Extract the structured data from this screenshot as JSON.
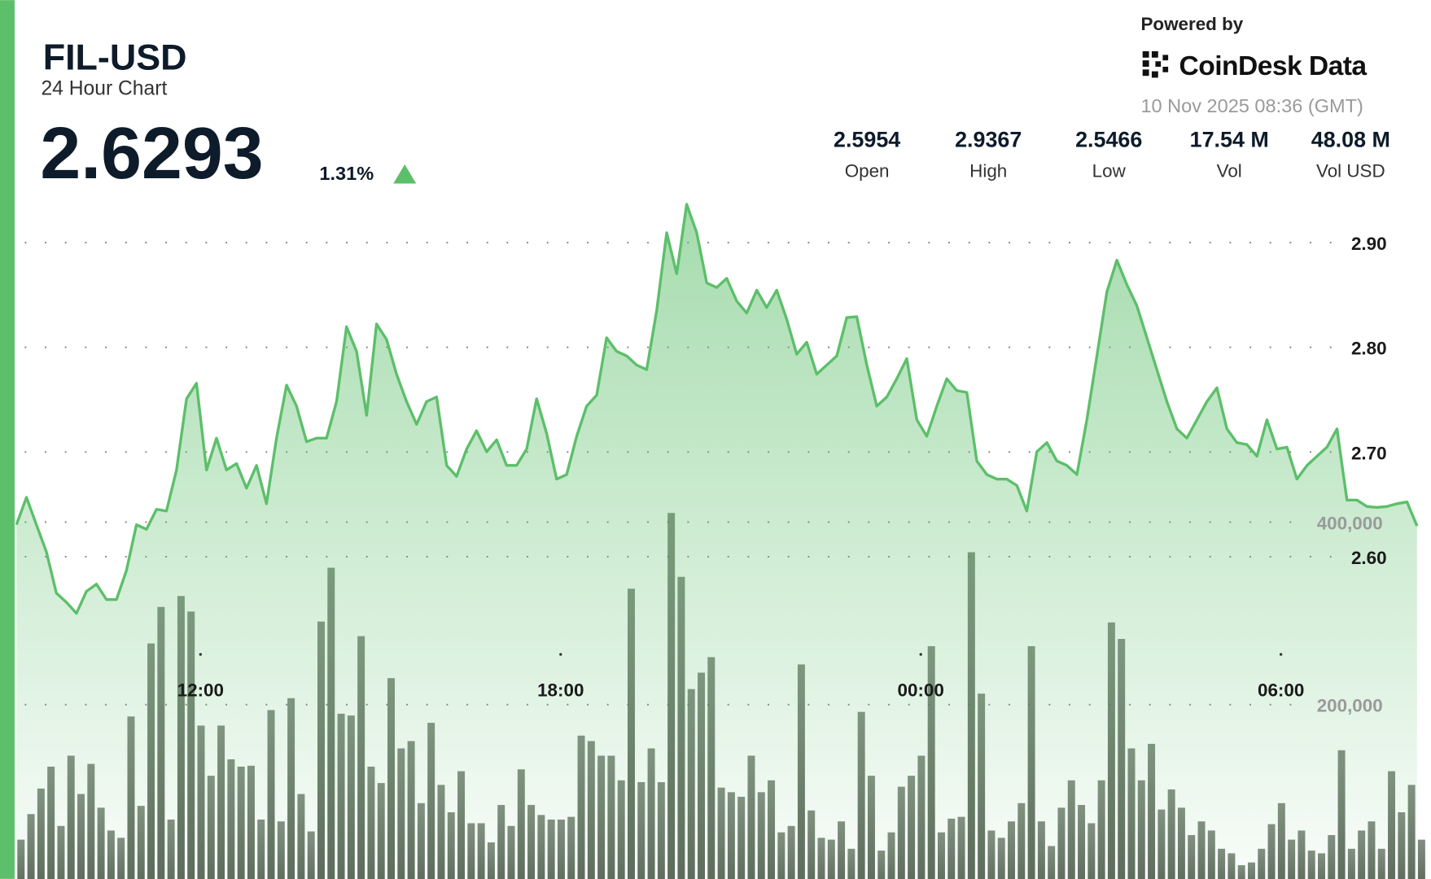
{
  "header": {
    "title": "FIL-USD",
    "subtitle": "24 Hour Chart",
    "price": "2.6293",
    "change": "1.31%",
    "powered_by": "Powered by",
    "brand": "CoinDesk Data",
    "timestamp": "10 Nov 2025 08:36 (GMT)"
  },
  "stats": [
    {
      "value": "2.5954",
      "label": "Open"
    },
    {
      "value": "2.9367",
      "label": "High"
    },
    {
      "value": "2.5466",
      "label": "Low"
    },
    {
      "value": "17.54 M",
      "label": "Vol"
    },
    {
      "value": "48.08 M",
      "label": "Vol USD"
    }
  ],
  "chart_data": {
    "type": "line",
    "x": [
      536,
      546,
      556,
      566,
      576,
      586,
      596,
      606,
      616,
      626,
      636,
      646,
      656,
      666,
      676,
      686,
      696,
      706,
      716,
      726,
      736,
      746,
      756,
      766,
      776,
      786,
      796,
      806,
      816,
      826,
      836,
      846,
      856,
      866,
      876,
      886,
      896,
      906,
      916,
      926,
      936,
      946,
      956,
      966,
      976,
      986,
      996,
      1006,
      1016,
      1026,
      1036,
      1046,
      1056,
      1066,
      1076,
      1086,
      1096,
      1106,
      1116,
      1126,
      1136,
      1146,
      1156,
      1166,
      1176,
      1186,
      1196,
      1206,
      1216,
      1226,
      1236,
      1246,
      1256,
      1266,
      1276,
      1286,
      1296,
      1306,
      1316,
      1326,
      1336,
      1346,
      1356,
      1366,
      1376,
      1386,
      1396,
      1406,
      1416,
      1426,
      1436,
      1446,
      1456,
      1466,
      1476,
      1486,
      1496,
      1506,
      1516,
      1526,
      1536,
      1546,
      1556,
      1566,
      1576,
      1586,
      1596,
      1606,
      1616,
      1626,
      1636,
      1646,
      1656,
      1666,
      1676,
      1686,
      1696,
      1706,
      1716,
      1726,
      1736,
      1746,
      1756,
      1766,
      1776,
      1786,
      1796,
      1806,
      1816,
      1826,
      1836,
      1846,
      1856,
      1866,
      1876,
      1886,
      1896,
      1906,
      1916,
      1926,
      1936
    ],
    "xlim": [
      536,
      1950
    ],
    "xticks": [
      {
        "value": 720,
        "label": "12:00"
      },
      {
        "value": 1080,
        "label": "18:00"
      },
      {
        "value": 1440,
        "label": "00:00"
      },
      {
        "value": 1800,
        "label": "06:00"
      }
    ],
    "ylim": [
      2.3,
      2.96
    ],
    "yticks": [
      {
        "value": 2.6,
        "label": "2.60"
      },
      {
        "value": 2.7,
        "label": "2.70"
      },
      {
        "value": 2.8,
        "label": "2.80"
      },
      {
        "value": 2.9,
        "label": "2.90"
      }
    ],
    "y2lim": [
      0,
      800000
    ],
    "y2ticks": [
      {
        "value": 200000,
        "label": "200,000"
      },
      {
        "value": 400000,
        "label": "400,000"
      }
    ],
    "grid": true,
    "series": [
      {
        "color": "#5cbf6a",
        "values": [
          2.6305,
          2.6567,
          2.6305,
          2.6044,
          2.5651,
          2.5564,
          2.5459,
          2.5669,
          2.5738,
          2.559,
          2.559,
          2.5869,
          2.6305,
          2.6262,
          2.6453,
          2.6436,
          2.6828,
          2.7508,
          2.7657,
          2.6828,
          2.7133,
          2.6828,
          2.6889,
          2.6654,
          2.6872,
          2.6506,
          2.7133,
          2.7639,
          2.7439,
          2.7099,
          2.7133,
          2.7133,
          2.7482,
          2.8197,
          2.7962,
          2.7351,
          2.8223,
          2.8075,
          2.7744,
          2.7482,
          2.7264,
          2.7482,
          2.7526,
          2.6872,
          2.6767,
          2.7029,
          2.7203,
          2.7003,
          2.7116,
          2.6872,
          2.6872,
          2.7029,
          2.7508,
          2.7177,
          2.6741,
          2.6785,
          2.7151,
          2.7439,
          2.7543,
          2.8092,
          2.7962,
          2.7918,
          2.7831,
          2.7787,
          2.8354,
          2.9095,
          2.8703,
          2.9367,
          2.9095,
          2.8616,
          2.8572,
          2.8659,
          2.8441,
          2.8328,
          2.8546,
          2.838,
          2.8546,
          2.8267,
          2.7935,
          2.8049,
          2.7744,
          2.7831,
          2.7918,
          2.8284,
          2.8293,
          2.7831,
          2.7439,
          2.7526,
          2.77,
          2.7892,
          2.7308,
          2.7151,
          2.7439,
          2.77,
          2.7587,
          2.7569,
          2.6915,
          2.6785,
          2.6741,
          2.6741,
          2.668,
          2.6436,
          2.7003,
          2.709,
          2.6915,
          2.6872,
          2.6785,
          2.7308,
          2.7918,
          2.8528,
          2.8833,
          2.8598,
          2.8398,
          2.8092,
          2.7787,
          2.7482,
          2.7221,
          2.7133,
          2.7308,
          2.7482,
          2.7613,
          2.7221,
          2.709,
          2.7072,
          2.6959,
          2.7308,
          2.7029,
          2.7046,
          2.6741,
          2.6872,
          2.6959,
          2.7046,
          2.7221,
          2.6541,
          2.6541,
          2.648,
          2.6471,
          2.648,
          2.6506,
          2.6523,
          2.6293
        ]
      },
      {
        "type": "bar",
        "axis": "y2",
        "color": "#5c675a",
        "values": [
          52000,
          80000,
          108000,
          132000,
          67000,
          144000,
          102000,
          135000,
          87000,
          62000,
          54000,
          187000,
          89000,
          267000,
          307000,
          74000,
          319000,
          302000,
          177000,
          122000,
          177000,
          140000,
          132000,
          133000,
          74000,
          194000,
          72000,
          207000,
          102000,
          61000,
          291000,
          350000,
          190000,
          188000,
          275000,
          132000,
          114000,
          229000,
          152000,
          160000,
          92000,
          180000,
          112000,
          82000,
          127000,
          70000,
          70000,
          49000,
          90000,
          67000,
          129000,
          90000,
          79000,
          74000,
          74000,
          77000,
          166000,
          160000,
          144000,
          144000,
          117000,
          327000,
          115000,
          152000,
          115000,
          410000,
          340000,
          217000,
          235000,
          252000,
          109000,
          104000,
          99000,
          144000,
          104000,
          117000,
          60000,
          67000,
          244000,
          84000,
          54000,
          52000,
          72000,
          42000,
          192000,
          122000,
          40000,
          60000,
          110000,
          122000,
          144000,
          264000,
          60000,
          75000,
          77000,
          367000,
          212000,
          62000,
          54000,
          72000,
          92000,
          264000,
          72000,
          45000,
          87000,
          117000,
          90000,
          70000,
          117000,
          290000,
          272000,
          152000,
          117000,
          157000,
          85000,
          107000,
          87000,
          57000,
          72000,
          62000,
          42000,
          37000,
          24000,
          27000,
          42000,
          69000,
          92000,
          52000,
          62000,
          40000,
          37000,
          57000,
          150000,
          42000,
          62000,
          72000,
          42000,
          127000,
          82000,
          112000,
          52000
        ]
      }
    ]
  }
}
